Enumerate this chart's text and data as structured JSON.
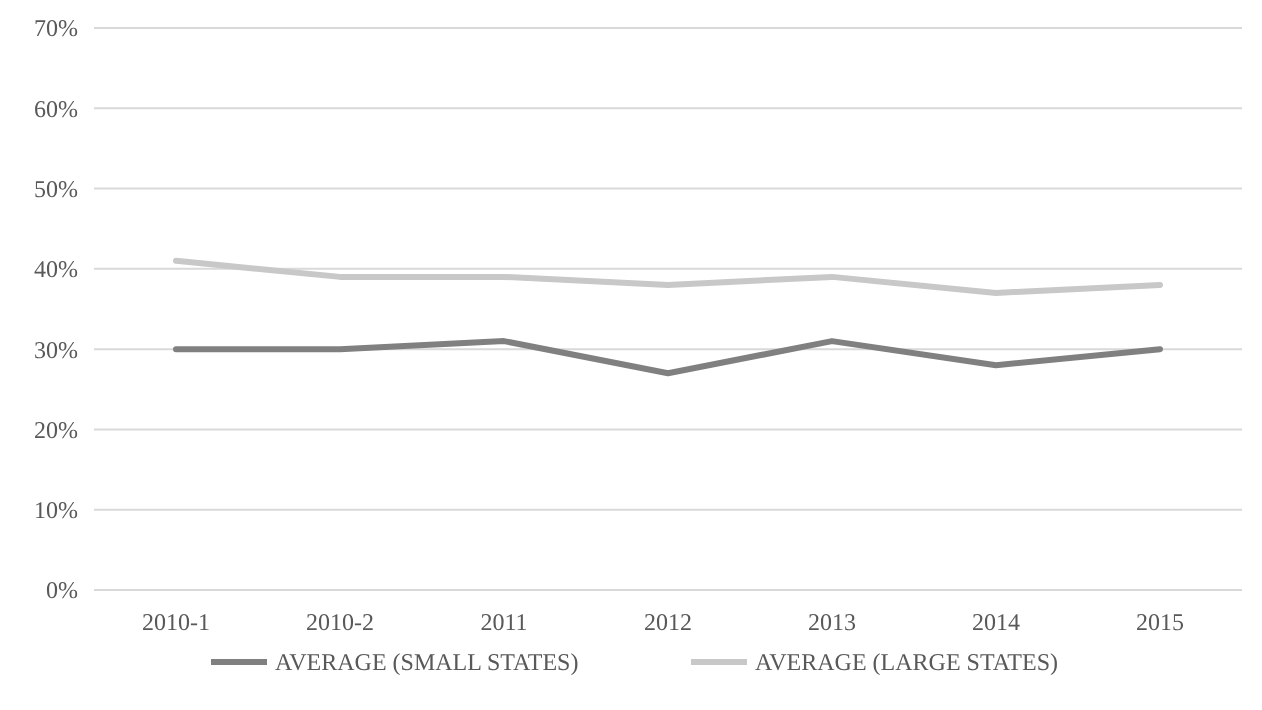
{
  "chart_data": {
    "type": "line",
    "categories": [
      "2010-1",
      "2010-2",
      "2011",
      "2012",
      "2013",
      "2014",
      "2015"
    ],
    "series": [
      {
        "name": "AVERAGE (SMALL STATES)",
        "color": "#808080",
        "values": [
          30,
          30,
          31,
          27,
          31,
          28,
          30
        ]
      },
      {
        "name": "AVERAGE (LARGE STATES)",
        "color": "#c8c8c8",
        "values": [
          41,
          39,
          39,
          38,
          39,
          37,
          38
        ]
      }
    ],
    "ylim": [
      0,
      70
    ],
    "yticks": [
      {
        "value": 0,
        "label": "0%"
      },
      {
        "value": 10,
        "label": "10%"
      },
      {
        "value": 20,
        "label": "20%"
      },
      {
        "value": 30,
        "label": "30%"
      },
      {
        "value": 40,
        "label": "40%"
      },
      {
        "value": 50,
        "label": "50%"
      },
      {
        "value": 60,
        "label": "60%"
      },
      {
        "value": 70,
        "label": "70%"
      }
    ],
    "grid": "y",
    "legend": "bottom",
    "marker": "none",
    "line_style": "solid"
  }
}
